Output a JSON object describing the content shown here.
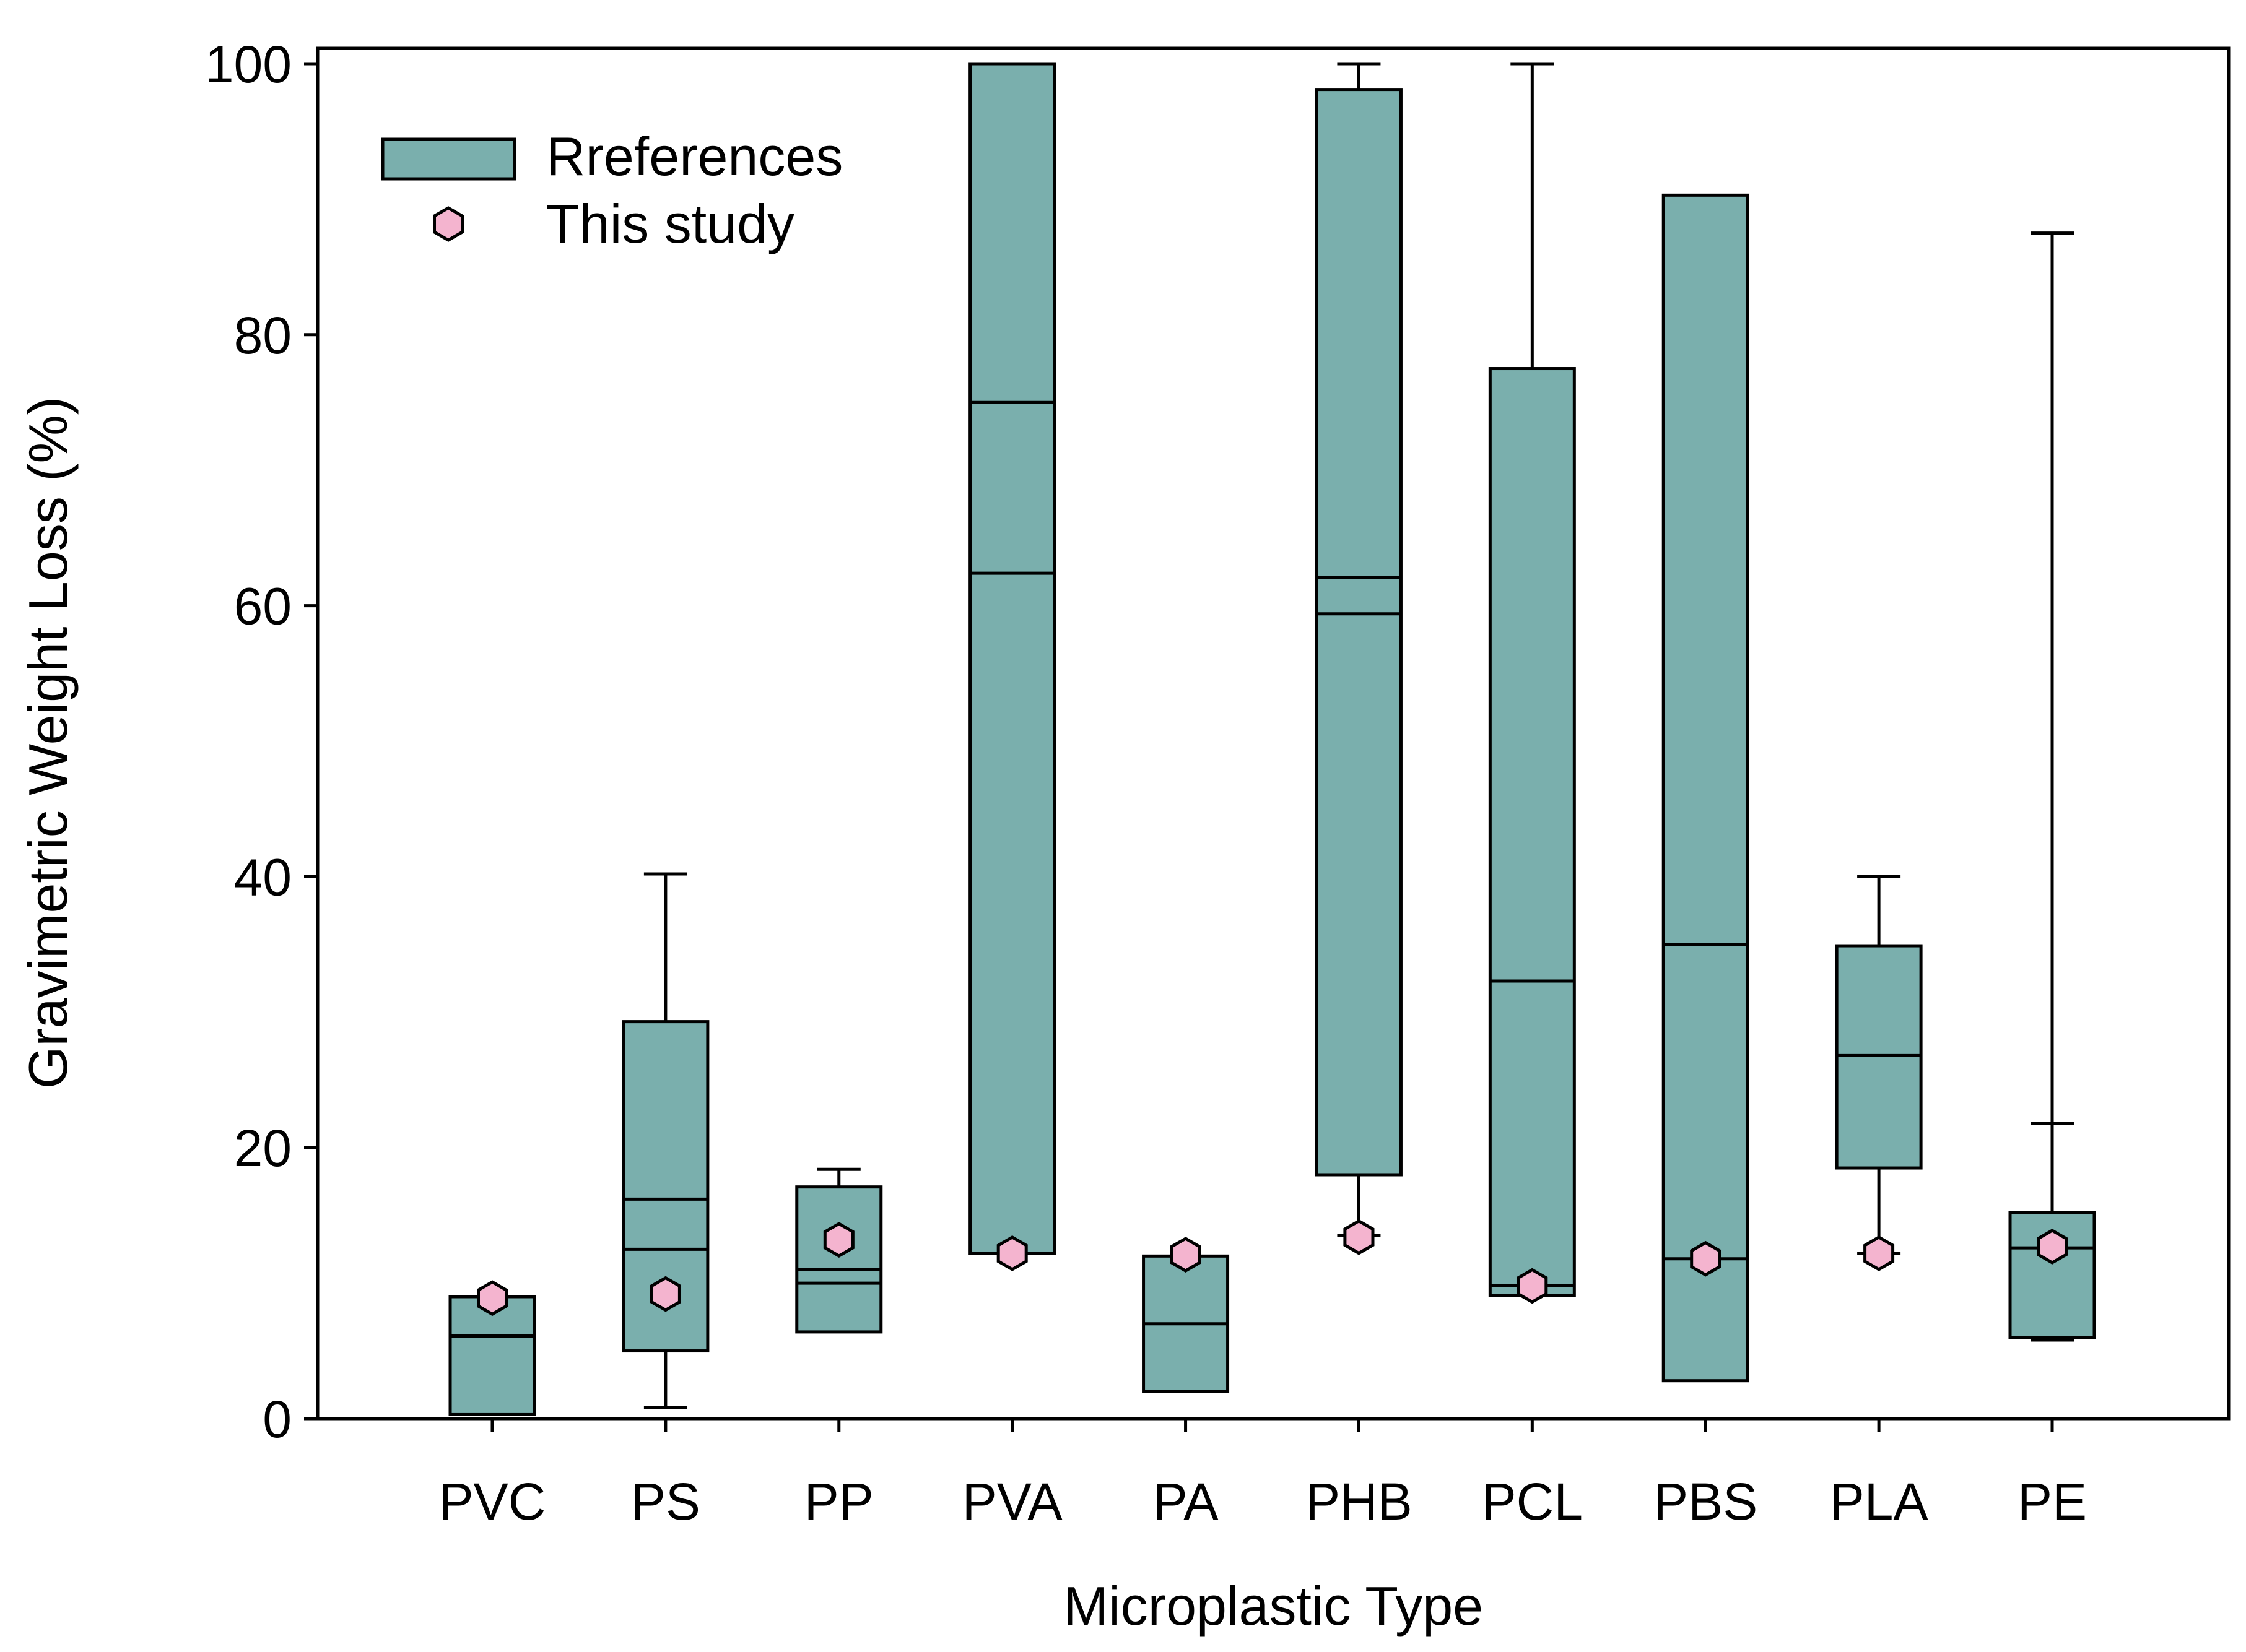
{
  "chart_data": {
    "type": "boxplot",
    "xlabel": "Microplastic Type",
    "ylabel": "Gravimetric Weight Loss (%)",
    "ylim": [
      0,
      100
    ],
    "yticks": [
      0,
      20,
      40,
      60,
      80,
      100
    ],
    "legend": {
      "position": "top-left",
      "entries": [
        {
          "label": "Rreferences",
          "kind": "box"
        },
        {
          "label": "This study",
          "kind": "marker"
        }
      ]
    },
    "colors": {
      "box_fill": "#7aafad",
      "marker_fill": "#f4b4cf",
      "line": "#000000"
    },
    "categories": [
      "PVC",
      "PS",
      "PP",
      "PVA",
      "PA",
      "PHB",
      "PCL",
      "PBS",
      "PLA",
      "PE"
    ],
    "boxes": [
      {
        "category": "PVC",
        "whisker_low": 0.3,
        "q1": 0.3,
        "lines": [
          6.1
        ],
        "q3": 9.0,
        "whisker_high": 9.0,
        "this_study": 8.9
      },
      {
        "category": "PS",
        "whisker_low": 0.8,
        "q1": 5.0,
        "lines": [
          12.5,
          16.2
        ],
        "q3": 29.3,
        "whisker_high": 40.2,
        "this_study": 9.2
      },
      {
        "category": "PP",
        "whisker_low": 6.4,
        "q1": 6.4,
        "lines": [
          10.0,
          11.0
        ],
        "q3": 17.1,
        "whisker_high": 18.4,
        "this_study": 13.2
      },
      {
        "category": "PVA",
        "whisker_low": 12.2,
        "q1": 12.2,
        "lines": [
          62.4,
          75.0
        ],
        "q3": 100.0,
        "whisker_high": 100.0,
        "this_study": 12.2
      },
      {
        "category": "PA",
        "whisker_low": 2.0,
        "q1": 2.0,
        "lines": [
          7.0
        ],
        "q3": 12.0,
        "whisker_high": 12.0,
        "this_study": 12.1
      },
      {
        "category": "PHB",
        "whisker_low": 13.5,
        "q1": 18.0,
        "lines": [
          59.4,
          62.1
        ],
        "q3": 98.1,
        "whisker_high": 100.0,
        "this_study": 13.4
      },
      {
        "category": "PCL",
        "whisker_low": 9.1,
        "q1": 9.1,
        "lines": [
          9.8,
          32.3
        ],
        "q3": 77.5,
        "whisker_high": 100.0,
        "this_study": 9.8
      },
      {
        "category": "PBS",
        "whisker_low": 2.8,
        "q1": 2.8,
        "lines": [
          11.8,
          35.0
        ],
        "q3": 90.3,
        "whisker_high": 90.3,
        "this_study": 11.8
      },
      {
        "category": "PLA",
        "whisker_low": 12.2,
        "q1": 18.5,
        "lines": [
          26.8
        ],
        "q3": 34.9,
        "whisker_high": 40.0,
        "this_study": 12.2
      },
      {
        "category": "PE",
        "whisker_low": 5.8,
        "q1": 6.0,
        "lines": [
          12.6
        ],
        "q3": 15.2,
        "whisker_high": 87.5,
        "whisker_cap_mid": 21.8,
        "this_study": 12.7
      }
    ]
  }
}
